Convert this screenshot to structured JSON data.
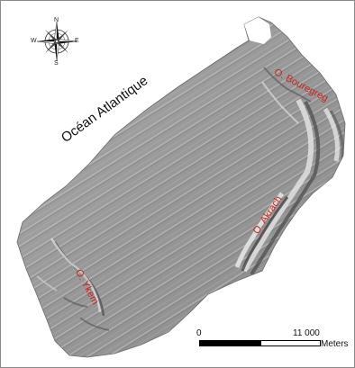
{
  "map": {
    "labels": {
      "ocean": "Océan Atlantique",
      "river_bouregreg": "O. Bouregreg",
      "river_akrach": "O. Akrach",
      "river_ykem": "O. Ykem"
    },
    "compass": {
      "n": "N",
      "s": "S",
      "e": "E",
      "w": "W"
    },
    "scale": {
      "start": "0",
      "end": "11 000",
      "unit": "Meters"
    },
    "colors": {
      "relief_base": "#9a9a9a",
      "relief_light": "#d8d8d8",
      "relief_dark": "#5a5a5a",
      "river_label": "#c8241c",
      "ocean_label": "#111111"
    }
  }
}
